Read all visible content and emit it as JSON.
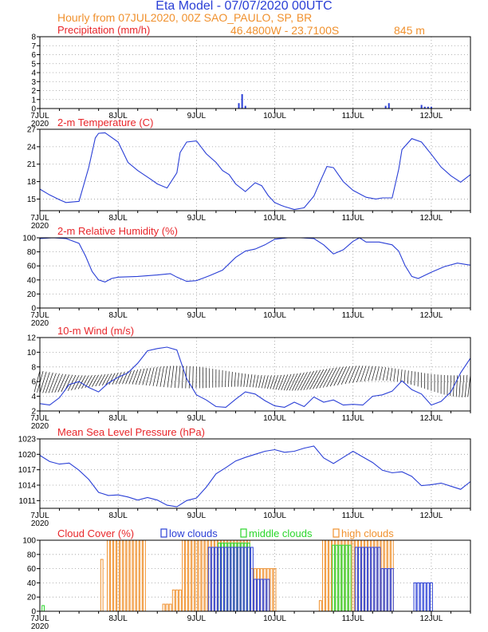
{
  "header": {
    "title": "Eta Model - 07/07/2020 00UTC",
    "subtitle": "Hourly from 07JUL2020, 00Z   SAO_PAULO, SP, BR",
    "coords": "46.4800W - 23.7100S",
    "elevation": "845  m",
    "title_color": "#2a3fd6",
    "subtitle_color": "#f0912e"
  },
  "colors": {
    "line": "#2a3fd6",
    "panel_title": "#e8262a",
    "low": "#2a3fd6",
    "middle": "#2bd62b",
    "high": "#f0912e",
    "axis": "#000000",
    "grid": "#9a9a9a"
  },
  "x_axis": {
    "hours_total": 132,
    "ticks": [
      {
        "hour": 0,
        "label": "7JUL",
        "year": "2020"
      },
      {
        "hour": 24,
        "label": "8JUL",
        "year": ""
      },
      {
        "hour": 48,
        "label": "9JUL",
        "year": ""
      },
      {
        "hour": 72,
        "label": "10JUL",
        "year": ""
      },
      {
        "hour": 96,
        "label": "11JUL",
        "year": ""
      },
      {
        "hour": 120,
        "label": "12JUL",
        "year": ""
      }
    ]
  },
  "chart_data": [
    {
      "type": "bar",
      "title": "Precipitation (mm/h)",
      "ylim": [
        0,
        8
      ],
      "yticks": [
        0,
        1,
        2,
        3,
        4,
        5,
        6,
        7,
        8
      ],
      "x": [
        61,
        62,
        63,
        106,
        107,
        117,
        118,
        119,
        120
      ],
      "values": [
        0.6,
        1.6,
        0.3,
        0.3,
        0.6,
        0.4,
        0.2,
        0.2,
        0.2
      ]
    },
    {
      "type": "line",
      "title": "2-m Temperature (C)",
      "ylim": [
        13,
        27
      ],
      "yticks": [
        15,
        18,
        21,
        24,
        27
      ],
      "x": [
        0,
        3,
        6,
        8,
        12,
        15,
        17,
        18,
        20,
        24,
        27,
        30,
        34,
        36,
        39,
        42,
        43,
        45,
        48,
        51,
        54,
        56,
        58,
        60,
        63,
        66,
        68,
        70,
        72,
        74,
        75,
        78,
        81,
        84,
        86,
        88,
        90,
        93,
        96,
        100,
        103,
        105,
        108,
        110,
        111,
        114,
        117,
        120,
        123,
        126,
        129,
        132
      ],
      "values": [
        16.7,
        15.7,
        14.9,
        14.4,
        14.6,
        20.5,
        25.5,
        26.3,
        26.4,
        24.8,
        21.3,
        19.9,
        18.4,
        17.6,
        16.9,
        19.5,
        23.0,
        24.8,
        25.0,
        22.8,
        21.3,
        19.9,
        19.2,
        17.6,
        16.3,
        17.8,
        17.3,
        15.6,
        14.4,
        13.9,
        13.7,
        13.2,
        13.5,
        15.5,
        18.1,
        20.6,
        20.4,
        18.0,
        16.5,
        15.3,
        15.0,
        15.2,
        15.2,
        20.1,
        23.5,
        25.4,
        24.8,
        22.7,
        20.5,
        19.0,
        17.9,
        19.2
      ]
    },
    {
      "type": "line",
      "title": "2-m Relative Humidity (%)",
      "ylim": [
        0,
        100
      ],
      "yticks": [
        0,
        20,
        40,
        60,
        80,
        100
      ],
      "x": [
        0,
        4,
        8,
        12,
        14,
        16,
        18,
        20,
        22,
        24,
        30,
        36,
        40,
        42,
        45,
        48,
        52,
        56,
        60,
        63,
        66,
        69,
        72,
        76,
        80,
        84,
        87,
        90,
        93,
        96,
        98,
        100,
        104,
        108,
        110,
        112,
        114,
        116,
        120,
        124,
        128,
        132
      ],
      "values": [
        99,
        100,
        99,
        92,
        74,
        52,
        40,
        37,
        42,
        44,
        45,
        47,
        49,
        44,
        38,
        39,
        46,
        54,
        72,
        81,
        84,
        90,
        98,
        100,
        100,
        99,
        90,
        77,
        83,
        95,
        100,
        94,
        94,
        90,
        81,
        60,
        45,
        42,
        51,
        59,
        64,
        61
      ]
    },
    {
      "type": "line",
      "title": "10-m Wind (m/s)",
      "ylim": [
        2,
        12
      ],
      "yticks": [
        2,
        4,
        6,
        8,
        10,
        12
      ],
      "x": [
        0,
        3,
        6,
        9,
        12,
        15,
        18,
        21,
        24,
        27,
        30,
        33,
        36,
        39,
        42,
        45,
        48,
        51,
        54,
        57,
        60,
        63,
        66,
        69,
        72,
        75,
        78,
        81,
        84,
        87,
        90,
        93,
        96,
        99,
        102,
        105,
        108,
        111,
        114,
        117,
        120,
        123,
        126,
        129,
        132
      ],
      "values": [
        3.0,
        2.8,
        3.8,
        5.6,
        6.0,
        5.2,
        4.6,
        5.8,
        6.6,
        7.2,
        8.5,
        10.2,
        10.5,
        10.7,
        10.3,
        6.4,
        4.2,
        3.5,
        2.6,
        2.5,
        3.6,
        4.6,
        4.3,
        3.4,
        2.7,
        2.5,
        3.2,
        2.6,
        3.9,
        3.2,
        3.5,
        2.8,
        2.9,
        2.8,
        4.0,
        4.2,
        4.7,
        6.1,
        4.9,
        4.3,
        2.8,
        3.3,
        4.6,
        7.2,
        9.2
      ]
    },
    {
      "type": "line",
      "title": "Mean Sea Level Pressure (hPa)",
      "ylim": [
        1009.5,
        1023
      ],
      "yticks": [
        1011,
        1014,
        1017,
        1020,
        1023
      ],
      "x": [
        0,
        3,
        6,
        9,
        12,
        15,
        18,
        21,
        24,
        27,
        30,
        33,
        36,
        39,
        42,
        45,
        48,
        51,
        54,
        57,
        60,
        63,
        66,
        69,
        72,
        75,
        78,
        81,
        84,
        87,
        90,
        93,
        96,
        99,
        102,
        105,
        108,
        111,
        114,
        117,
        120,
        123,
        126,
        129,
        132
      ],
      "values": [
        1019.8,
        1018.6,
        1018.1,
        1018.3,
        1016.9,
        1015.1,
        1012.6,
        1012.0,
        1012.1,
        1011.7,
        1011.1,
        1011.6,
        1011.1,
        1010.1,
        1009.8,
        1011.0,
        1011.5,
        1013.6,
        1016.2,
        1017.4,
        1018.7,
        1019.4,
        1020.0,
        1020.6,
        1020.9,
        1020.4,
        1020.6,
        1021.2,
        1021.6,
        1019.3,
        1018.2,
        1019.4,
        1020.6,
        1019.5,
        1018.4,
        1016.9,
        1016.4,
        1016.6,
        1015.7,
        1013.9,
        1014.1,
        1014.4,
        1013.8,
        1013.2,
        1014.7
      ]
    },
    {
      "type": "bar",
      "title": "Cloud Cover (%)",
      "ylim": [
        0,
        100
      ],
      "yticks": [
        0,
        20,
        40,
        60,
        80,
        100
      ],
      "legend": [
        {
          "name": "low clouds",
          "color": "#2a3fd6"
        },
        {
          "name": "middle clouds",
          "color": "#2bd62b"
        },
        {
          "name": "high clouds",
          "color": "#f0912e"
        }
      ],
      "series": [
        {
          "name": "high clouds",
          "ranges": [
            {
              "x0": 19,
              "x1": 19,
              "v": 73
            },
            {
              "x0": 21,
              "x1": 32,
              "v": 100
            },
            {
              "x0": 38,
              "x1": 40,
              "v": 10
            },
            {
              "x0": 41,
              "x1": 43,
              "v": 30
            },
            {
              "x0": 44,
              "x1": 64,
              "v": 100
            },
            {
              "x0": 65,
              "x1": 72,
              "v": 60
            },
            {
              "x0": 86,
              "x1": 86,
              "v": 15
            },
            {
              "x0": 87,
              "x1": 108,
              "v": 100
            }
          ]
        },
        {
          "name": "middle clouds",
          "ranges": [
            {
              "x0": 1,
              "x1": 1,
              "v": 8
            },
            {
              "x0": 55,
              "x1": 64,
              "v": 96
            },
            {
              "x0": 90,
              "x1": 95,
              "v": 93
            }
          ]
        },
        {
          "name": "low clouds",
          "ranges": [
            {
              "x0": 52,
              "x1": 65,
              "v": 90
            },
            {
              "x0": 66,
              "x1": 70,
              "v": 45
            },
            {
              "x0": 97,
              "x1": 104,
              "v": 90
            },
            {
              "x0": 105,
              "x1": 108,
              "v": 60
            },
            {
              "x0": 115,
              "x1": 120,
              "v": 40
            }
          ]
        }
      ]
    }
  ]
}
